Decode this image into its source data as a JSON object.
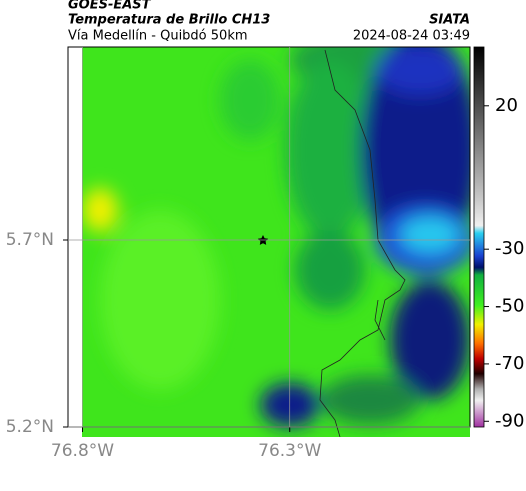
{
  "header": {
    "satellite": "GOES-EAST",
    "title": "Temperatura de Brillo CH13",
    "subtitle": "Vía Medellín - Quibdó 50km",
    "source": "SIATA",
    "timestamp": "2024-08-24 03:49"
  },
  "map": {
    "xlim": [
      -76.835,
      -75.865
    ],
    "ylim": [
      5.2,
      6.216
    ],
    "xticks": [
      {
        "value": -76.8,
        "label": "76.8°W"
      },
      {
        "value": -76.3,
        "label": "76.3°W"
      }
    ],
    "yticks": [
      {
        "value": 5.7,
        "label": "5.7°N"
      },
      {
        "value": 5.2,
        "label": "5.2°N"
      }
    ]
  },
  "colorbar": {
    "lim": [
      -92,
      40.5
    ],
    "ticks": [
      20,
      -30,
      -50,
      -70,
      -90
    ]
  }
}
